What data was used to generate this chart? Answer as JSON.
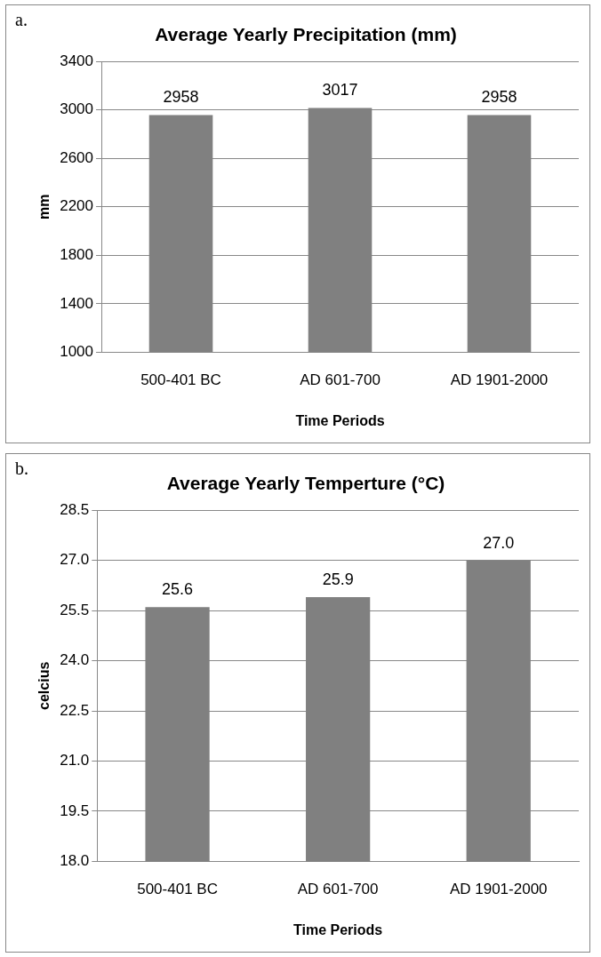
{
  "chart_data": [
    {
      "type": "bar",
      "title": "Average Yearly Precipitation (mm)",
      "xlabel": "Time Periods",
      "ylabel": "mm",
      "annotations": [
        "a."
      ],
      "categories": [
        "500-401 BC",
        "AD 601-700",
        "AD 1901-2000"
      ],
      "values": [
        2958,
        3017,
        2958
      ],
      "color": "#808080",
      "ylim": [
        1000,
        3400
      ],
      "yticks": [
        1000,
        1400,
        1800,
        2200,
        2600,
        3000,
        3400
      ],
      "grid": "y",
      "data_labels": true
    },
    {
      "type": "bar",
      "title": "Average Yearly Temperture (°C)",
      "xlabel": "Time Periods",
      "ylabel": "celcius",
      "annotations": [
        "b."
      ],
      "categories": [
        "500-401 BC",
        "AD 601-700",
        "AD 1901-2000"
      ],
      "values": [
        25.6,
        25.9,
        27.0
      ],
      "value_labels": [
        "25.6",
        "25.9",
        "27.0"
      ],
      "color": "#808080",
      "ylim": [
        18,
        28.5
      ],
      "yticks": [
        {
          "value": 18,
          "label": "18.0"
        },
        19.5,
        {
          "value": 21,
          "label": "21.0"
        },
        22.5,
        {
          "value": 24,
          "label": "24.0"
        },
        25.5,
        {
          "value": 27,
          "label": "27.0"
        },
        28.5
      ],
      "grid": "y"
    }
  ]
}
